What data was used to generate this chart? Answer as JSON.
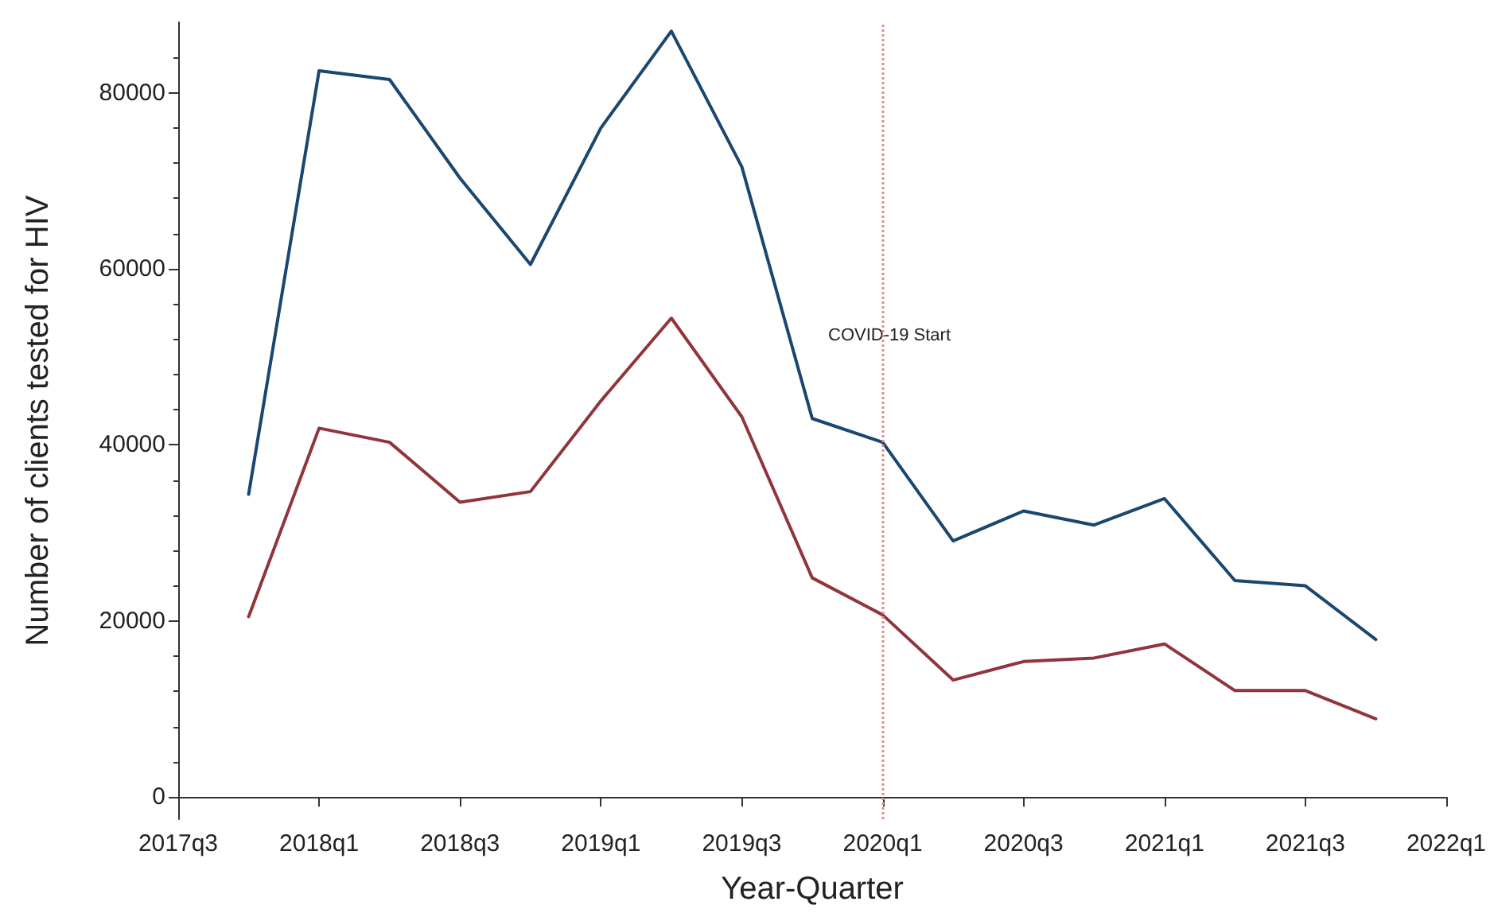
{
  "chart_data": {
    "type": "line",
    "xlabel": "Year-Quarter",
    "ylabel": "Number of clients tested for HIV",
    "categories": [
      "2017q3",
      null,
      "2018q1",
      null,
      "2018q3",
      null,
      "2019q1",
      null,
      "2019q3",
      null,
      "2020q1",
      null,
      "2020q3",
      null,
      "2021q1",
      null,
      "2021q3",
      null,
      "2022q1"
    ],
    "series": [
      {
        "color": "#1a476f",
        "values": [
          null,
          34400,
          82500,
          81500,
          70300,
          60500,
          76000,
          87000,
          71600,
          43000,
          40300,
          29100,
          32500,
          30900,
          33900,
          24600,
          24000,
          17900,
          null
        ]
      },
      {
        "color": "#90353b",
        "values": [
          null,
          20500,
          41900,
          40300,
          33500,
          34700,
          45000,
          54400,
          43200,
          24900,
          20700,
          13300,
          15400,
          15800,
          17400,
          12100,
          12100,
          8900,
          null
        ]
      }
    ],
    "ylim": [
      -2500,
      88000
    ],
    "yticks": [
      0,
      20000,
      40000,
      60000,
      80000
    ],
    "ref_lines": [
      {
        "axis": "x",
        "value": "2020q1",
        "label": "COVID-19 Start",
        "color": "#e88a8a",
        "line_style": "dotted"
      }
    ],
    "grid": false,
    "marker": "none",
    "line_style": "solid"
  }
}
